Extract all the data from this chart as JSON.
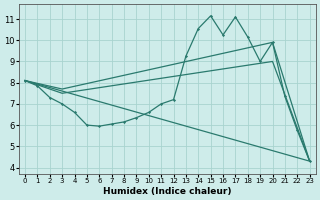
{
  "xlabel": "Humidex (Indice chaleur)",
  "bg_color": "#ceecea",
  "grid_color": "#a8d4cf",
  "line_color": "#2a7a6e",
  "xlim": [
    -0.5,
    23.5
  ],
  "ylim": [
    3.7,
    11.7
  ],
  "xticks": [
    0,
    1,
    2,
    3,
    4,
    5,
    6,
    7,
    8,
    9,
    10,
    11,
    12,
    13,
    14,
    15,
    16,
    17,
    18,
    19,
    20,
    21,
    22,
    23
  ],
  "yticks": [
    4,
    5,
    6,
    7,
    8,
    9,
    10,
    11
  ],
  "curve_x": [
    0,
    1,
    2,
    3,
    4,
    5,
    6,
    7,
    8,
    9,
    10,
    11,
    12,
    13,
    14,
    15,
    16,
    17,
    18,
    19,
    20,
    21,
    22,
    23
  ],
  "curve_y": [
    8.1,
    7.85,
    7.3,
    7.0,
    6.6,
    6.0,
    5.95,
    6.05,
    6.15,
    6.35,
    6.6,
    7.0,
    7.2,
    9.25,
    10.55,
    11.15,
    10.25,
    11.1,
    10.15,
    9.0,
    9.9,
    7.35,
    5.75,
    4.3
  ],
  "line1_x": [
    0,
    23
  ],
  "line1_y": [
    8.1,
    4.3
  ],
  "line2_x": [
    0,
    3,
    20,
    23
  ],
  "line2_y": [
    8.1,
    7.7,
    9.9,
    4.3
  ],
  "line3_x": [
    0,
    3,
    20,
    23
  ],
  "line3_y": [
    8.1,
    7.5,
    9.0,
    4.3
  ]
}
